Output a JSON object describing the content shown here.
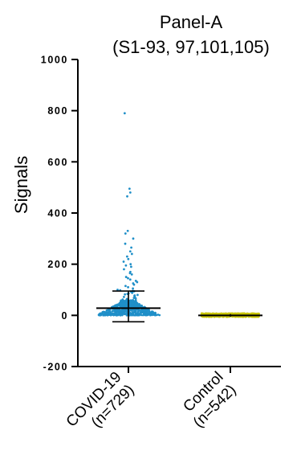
{
  "chart_data": {
    "type": "scatter",
    "title_line1": "Panel-A",
    "title_line2": "(S1-93, 97,101,105)",
    "ylabel": "Signals",
    "xlabel": "",
    "ylim": [
      -200,
      1000
    ],
    "yticks": [
      -200,
      0,
      200,
      400,
      600,
      800,
      1000
    ],
    "ytick_labels": [
      "-200",
      "0",
      "200",
      "400",
      "600",
      "800",
      "1000"
    ],
    "grid": false,
    "categories": [
      {
        "line1": "COVID-19",
        "line2": "(n=729)"
      },
      {
        "line1": "Control",
        "line2": "(n=542)"
      }
    ],
    "series": [
      {
        "category": "COVID-19",
        "n": 729,
        "color": "#1f8fc8",
        "median": 28,
        "whisker_low": -25,
        "whisker_high": 95,
        "bulk_min": 0,
        "bulk_max": 60,
        "outliers": [
          790,
          495,
          480,
          465,
          330,
          320,
          300,
          280,
          265,
          250,
          240,
          230,
          220,
          210,
          200,
          195,
          190,
          180,
          170,
          165,
          160,
          150,
          145,
          140,
          135,
          130,
          125,
          120,
          115,
          110,
          105,
          100,
          98,
          96,
          94,
          92,
          90,
          88,
          86,
          84,
          82,
          80,
          78,
          76,
          74,
          72,
          70,
          68,
          66,
          64,
          62
        ]
      },
      {
        "category": "Control",
        "n": 542,
        "color": "#c8c400",
        "median": 0,
        "whisker_low": -5,
        "whisker_high": 5,
        "bulk_min": -6,
        "bulk_max": 8,
        "outliers": []
      }
    ]
  }
}
